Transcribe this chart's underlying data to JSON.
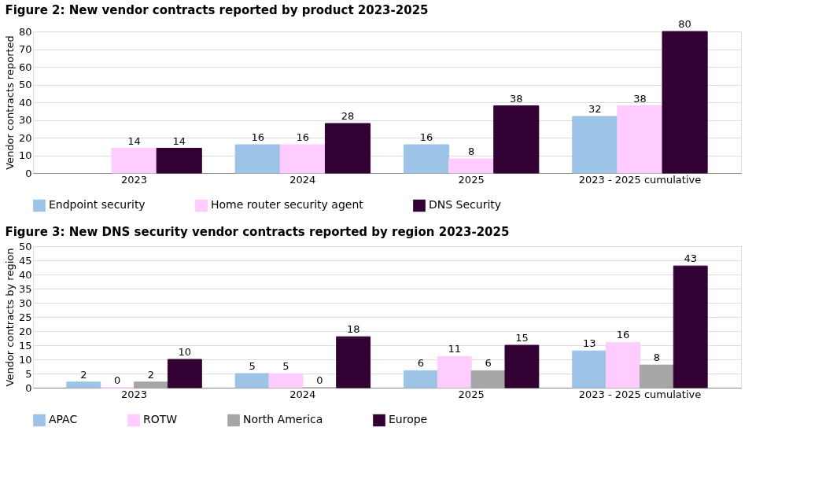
{
  "chart_data": [
    {
      "type": "bar",
      "title": "Figure 2: New vendor contracts reported by product 2023-2025",
      "ylabel": "Vendor contracts reported",
      "categories": [
        "2023",
        "2024",
        "2025",
        "2023 - 2025 cumulative"
      ],
      "series": [
        {
          "name": "Endpoint security",
          "color": "#9dc3e6",
          "values": [
            null,
            16,
            16,
            32
          ]
        },
        {
          "name": "Home router security agent",
          "color": "#ffccff",
          "values": [
            14,
            16,
            8,
            38
          ]
        },
        {
          "name": "DNS Security",
          "color": "#330033",
          "values": [
            14,
            28,
            38,
            80
          ]
        }
      ],
      "ylim": [
        0,
        80
      ],
      "yticks": [
        0,
        10,
        20,
        30,
        40,
        50,
        60,
        70,
        80
      ],
      "grid": "y",
      "legend": "bottom",
      "data_labels": true
    },
    {
      "type": "bar",
      "title": "Figure 3: New DNS security vendor contracts reported by region 2023-2025",
      "ylabel": "Vendor contracts by region",
      "categories": [
        "2023",
        "2024",
        "2025",
        "2023 - 2025 cumulative"
      ],
      "series": [
        {
          "name": "APAC",
          "color": "#9dc3e6",
          "values": [
            2,
            5,
            6,
            13
          ]
        },
        {
          "name": "ROTW",
          "color": "#ffccff",
          "values": [
            0,
            5,
            11,
            16
          ]
        },
        {
          "name": "North America",
          "color": "#a6a6a6",
          "values": [
            2,
            0,
            6,
            8
          ]
        },
        {
          "name": "Europe",
          "color": "#330033",
          "values": [
            10,
            18,
            15,
            43
          ]
        }
      ],
      "ylim": [
        0,
        50
      ],
      "yticks": [
        0,
        5,
        10,
        15,
        20,
        25,
        30,
        35,
        40,
        45,
        50
      ],
      "grid": "y",
      "legend": "bottom",
      "data_labels": true
    }
  ]
}
